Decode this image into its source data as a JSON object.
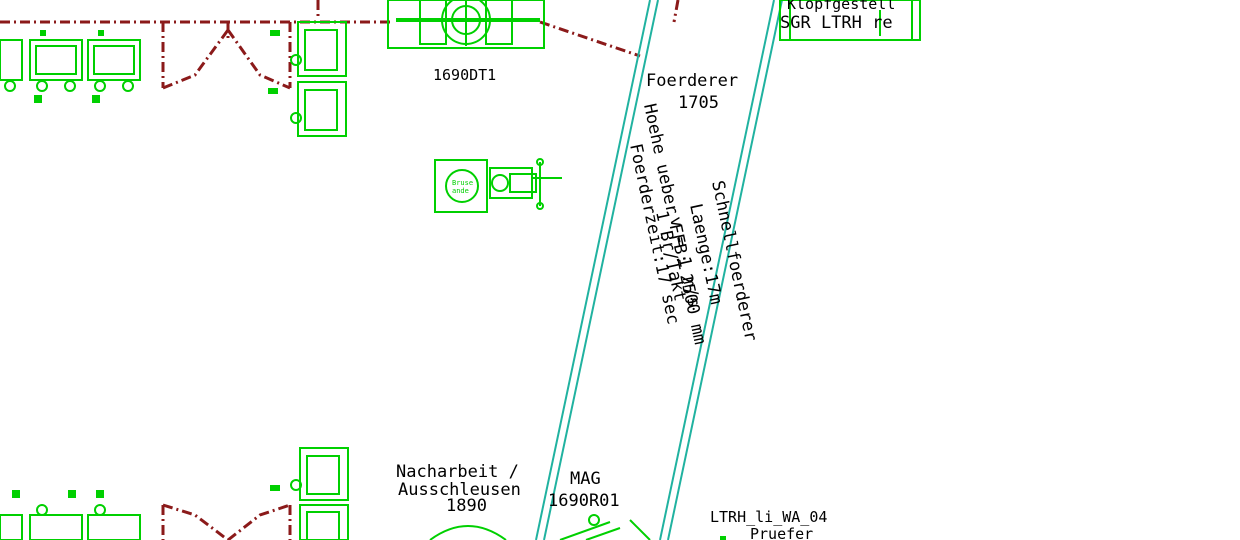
{
  "labels": {
    "top_station": "1690DT1",
    "conveyor_title": "Foerderer",
    "conveyor_number": "1705",
    "kloppgestell": "Klopfgestell",
    "sgr": "SGR LTRH re",
    "rotated_right": [
      "Schnellfoerderer",
      "Laenge:17m",
      "v = 1 m/s"
    ],
    "rotated_left": [
      "Hoehe ueber FFB: 2500 mm",
      "Foerderzeit:17 sec",
      "1 Br/Takt"
    ],
    "rework_line1": "Nacharbeit /",
    "rework_line2": "Ausschleusen",
    "rework_num": "1890",
    "mag_line1": "MAG",
    "mag_line2": "1690R01",
    "tester_line1": "LTRH_li_WA_04",
    "tester_line2": "Pruefer"
  },
  "colors": {
    "equipment": "#00d000",
    "conveyor": "#20b2a0",
    "fence": "#8b1a1a",
    "text": "#000000"
  }
}
